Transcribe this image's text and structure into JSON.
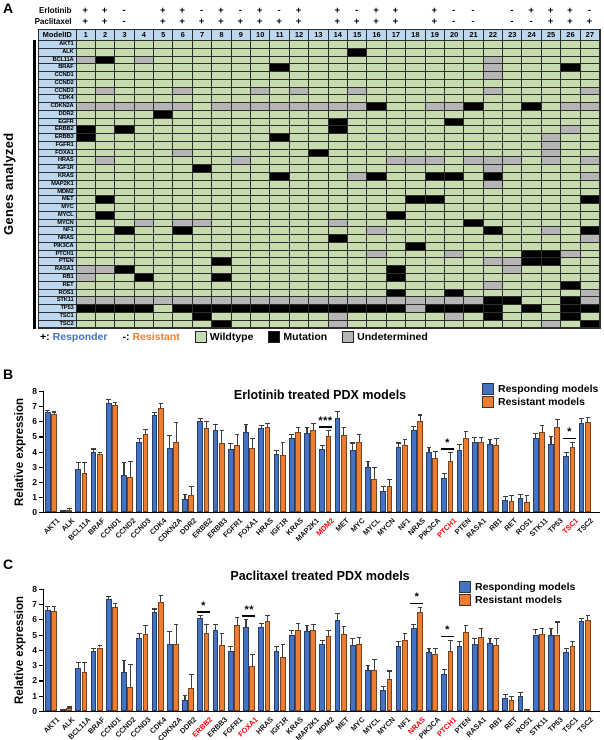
{
  "panelA": {
    "label": "A",
    "side_label": "Genes analyzed",
    "row_labels": {
      "erlotinib": "Erlotinib",
      "paclitaxel": "Paclitaxel",
      "model_id": "ModelID"
    },
    "models": [
      "1",
      "2",
      "3",
      "4",
      "5",
      "6",
      "7",
      "8",
      "9",
      "10",
      "11",
      "12",
      "13",
      "14",
      "15",
      "16",
      "17",
      "18",
      "19",
      "20",
      "21",
      "22",
      "23",
      "24",
      "25",
      "26",
      "27"
    ],
    "erlotinib_status": [
      "+",
      "+",
      "-",
      "",
      "+",
      "+",
      "-",
      "+",
      "-",
      "+",
      "-",
      "+",
      "",
      "+",
      "-",
      "+",
      "+",
      "",
      "+",
      "-",
      "-",
      "",
      "-",
      "+",
      "+",
      "+",
      "-"
    ],
    "paclitaxel_status": [
      "+",
      "+",
      "-",
      "",
      "+",
      "+",
      "+",
      "+",
      "+",
      "+",
      "+",
      "+",
      "",
      "+",
      "+",
      "+",
      "+",
      "",
      "+",
      "-",
      "-",
      "",
      "-",
      "-",
      "+",
      "+",
      "+"
    ],
    "genes": [
      "AKT1",
      "ALK",
      "BCL11A",
      "BRAF",
      "CCND1",
      "CCND2",
      "CCND3",
      "CDK4",
      "CDKN2A",
      "DDR2",
      "EGFR",
      "ERBB2",
      "ERBB3",
      "FGFR1",
      "FOXA1",
      "HRAS",
      "IGF1R",
      "KRAS",
      "MAP2K1",
      "MDM2",
      "MET",
      "MYC",
      "MYCL",
      "MYCN",
      "NF1",
      "NRAS",
      "PIK3CA",
      "PTCH1",
      "PTEN",
      "RASA1",
      "RB1",
      "RET",
      "ROS1",
      "STK11",
      "TP53",
      "TSC1",
      "TSC2"
    ],
    "matrix_key": {
      "G": "wildtype",
      "B": "mutation",
      "U": "undetermined"
    },
    "matrix": [
      "GGGGGGGGGGGGGGGGGGGGGGGGGGG",
      "GGGGGGGGGGGGGGBGGGGGGGGGGGG",
      "UBGUGGGGGGGGGGGGGGGGGUGGGGG",
      "GGGGGGGGGGBGGGGGGGGGGUGGGBG",
      "GGGGGGGGGGGGGGGGGGGGGUGGGGG",
      "GGGGGGGGGGGGGGGGGGGGGGGGGGG",
      "GUGGGUGGGUGUGGUGGGGGGUGGGGU",
      "GGGGGGGGGGGGGGGGGGGGGGGGGGG",
      "UUUUUUGUUUUUUUUBGGUUBGGBGUU",
      "GGGGBGGGGGGGGGGGGGGGGGGGGGG",
      "GGGGGGGGGGGGGBGGGGGBGGGGGGG",
      "BGBGGGGGGGGGGBGGGGGGGGGGGUG",
      "BGGGGGGGGGBGGGGGGGGGGGGGUGG",
      "GGGGGGGGGGGGGGGGGGGGGGGGUGG",
      "GGGGGUGGGGGGBGGGGGGGGGGGUGG",
      "GUGGGGGGUGGGGGGGUUUGUUUGUGU",
      "GGGGGGBGGGGGGGGGGGGGGUGGGGG",
      "GGGGGGGGGGBGGGUBGGBBGBGGGGU",
      "GGGGGGGGGGGGGGGGGGGGGUGGGGG",
      "GGGGGGGGGGGGGGGGGGGGGGGGGGG",
      "GBGGGGGGGGGGGGGGGBBGGGGGGGB",
      "GGGGGGGGGGGGGGGGGGGGGGGGGGG",
      "GBGGGGGGGGGGGGGGBGGGGGGGGGG",
      "GGGUGUUGGGGGGUGGGGGGBGGGGGG",
      "GGBGGBGGGGGGGGGUGGGGGBGGUGB",
      "GGGGGGGGGGGGGBGGGGGGGGGGGGU",
      "GGGGGGGGGGGGGGGGGBGGGGGGGGG",
      "GGGGGGGGGGGGGGGUGGGUGGGBBUG",
      "GGGGGGGBGGGGGGGGGGGGGUUBBGG",
      "UUBGGGGGGGGGGGGGBGGGGGUGGGG",
      "UGGBGGGBGGGGGGGGBGGGGGGGGGG",
      "GGGGGGGGGGGGGGGGGGGGGUGGGBG",
      "GGGGGGGGGGGGGGGGBGGBGGGGGGU",
      "UUUUUUUUUUUUUUUUUUUUUBBGGBU",
      "BBBBGBBBBBBBBBBBBUBBBBGBGBB",
      "GGGGGGBGGGGGGUGGGGGUGBGGGBG",
      "GGGGGGGBGGGGGUGGGGGGGGGGUGB"
    ],
    "legend": {
      "responder_symbol": "+:",
      "responder": "Responder",
      "resistant_symbol": "-:",
      "resistant": "Resistant",
      "wildtype": "Wildtype",
      "mutation": "Mutation",
      "undetermined": "Undetermined"
    },
    "colors": {
      "wildtype": "#c7dcae",
      "mutation": "#000000",
      "undetermined": "#b5b5b5",
      "header_bg": "#bdd7ee",
      "responder_text": "#4472c4",
      "resistant_text": "#ed7d31",
      "grid_border": "#2d2d2d"
    }
  },
  "chart_data": [
    {
      "panel": "B",
      "type": "bar",
      "title": "Erlotinib treated PDX models",
      "ylabel": "Relative expression",
      "ylim": [
        0,
        8
      ],
      "yticks": [
        0,
        1,
        2,
        3,
        4,
        5,
        6,
        7,
        8
      ],
      "legend_position": "top-right",
      "categories": [
        "AKT1",
        "ALK",
        "BCL11A",
        "BRAF",
        "CCND1",
        "CCND2",
        "CCND3",
        "CDK4",
        "CDKN2A",
        "DDR2",
        "ERBB2",
        "ERBB3",
        "FGFR1",
        "FOXA1",
        "HRAS",
        "IGF1R",
        "KRAS",
        "MAP2K1",
        "MDM2",
        "MET",
        "MYC",
        "MYCL",
        "MYCN",
        "NF1",
        "NRAS",
        "PIK3CA",
        "PTCH1",
        "PTEN",
        "RASA1",
        "RB1",
        "RET",
        "ROS1",
        "STK11",
        "TP53",
        "TSC1",
        "TSC2"
      ],
      "red_categories": [
        "MDM2",
        "PTCH1",
        "TSC1"
      ],
      "significance": [
        {
          "category": "MDM2",
          "marker": "***"
        },
        {
          "category": "PTCH1",
          "marker": "*"
        },
        {
          "category": "TSC1",
          "marker": "*"
        }
      ],
      "series": [
        {
          "name": "Responding models",
          "color": "#4472c4",
          "values": [
            6.6,
            0.1,
            2.85,
            4.0,
            7.2,
            2.45,
            4.65,
            6.4,
            4.2,
            0.85,
            6.05,
            5.45,
            4.15,
            5.3,
            5.55,
            3.85,
            4.9,
            5.2,
            4.15,
            6.2,
            4.1,
            3.0,
            1.4,
            4.3,
            5.4,
            4.0,
            2.25,
            4.1,
            4.6,
            4.5,
            0.8,
            0.95,
            4.9,
            4.5,
            3.7,
            5.9
          ],
          "errors": [
            0.15,
            0.05,
            0.45,
            0.2,
            0.25,
            0.85,
            0.25,
            0.2,
            0.9,
            0.35,
            0.2,
            0.35,
            0.4,
            0.5,
            0.2,
            0.25,
            0.25,
            0.4,
            0.3,
            0.5,
            0.5,
            0.4,
            0.35,
            0.3,
            0.3,
            0.3,
            0.35,
            0.4,
            0.35,
            0.35,
            0.25,
            0.25,
            0.35,
            0.5,
            0.3,
            0.3
          ]
        },
        {
          "name": "Resistant models",
          "color": "#ed7d31",
          "values": [
            6.5,
            0.15,
            2.6,
            3.85,
            7.1,
            2.3,
            5.15,
            6.9,
            4.65,
            1.15,
            5.55,
            4.55,
            4.45,
            4.25,
            5.65,
            3.75,
            5.3,
            5.45,
            5.05,
            5.1,
            4.6,
            2.2,
            1.7,
            4.4,
            6.05,
            3.6,
            3.4,
            4.9,
            4.6,
            4.4,
            0.75,
            0.65,
            5.3,
            5.6,
            4.3,
            5.95
          ],
          "errors": [
            0.15,
            0.1,
            0.7,
            0.15,
            0.2,
            1.05,
            0.35,
            0.3,
            1.3,
            0.55,
            0.45,
            0.85,
            0.7,
            0.65,
            0.25,
            0.9,
            0.35,
            0.45,
            0.35,
            0.5,
            0.55,
            0.75,
            0.5,
            0.45,
            0.4,
            0.45,
            0.55,
            0.45,
            0.35,
            0.5,
            0.4,
            0.45,
            0.45,
            0.55,
            0.35,
            0.35
          ]
        }
      ]
    },
    {
      "panel": "C",
      "type": "bar",
      "title": "Paclitaxel treated PDX models",
      "ylabel": "Relative expression",
      "ylim": [
        0,
        8
      ],
      "yticks": [
        0,
        1,
        2,
        3,
        4,
        5,
        6,
        7,
        8
      ],
      "legend_position": "top-right",
      "categories": [
        "AKT1",
        "ALK",
        "BCL11A",
        "BRAF",
        "CCND1",
        "CCND2",
        "CCND3",
        "CDK4",
        "CDKN2A",
        "DDR2",
        "ERBB2",
        "ERBB3",
        "FGFR1",
        "FOXA1",
        "HRAS",
        "IGF1R",
        "KRAS",
        "MAP2K1",
        "MDM2",
        "MET",
        "MYC",
        "MYCL",
        "MYCN",
        "NF1",
        "NRAS",
        "PIK3CA",
        "PTCH1",
        "PTEN",
        "RASA1",
        "RB1",
        "RET",
        "ROS1",
        "STK11",
        "TP53",
        "TSC1",
        "TSC2"
      ],
      "red_categories": [
        "ERBB2",
        "FOXA1",
        "NRAS",
        "PTCH1"
      ],
      "significance": [
        {
          "category": "ERBB2",
          "marker": "*"
        },
        {
          "category": "FOXA1",
          "marker": "**"
        },
        {
          "category": "NRAS",
          "marker": "*"
        },
        {
          "category": "PTCH1",
          "marker": "*"
        }
      ],
      "series": [
        {
          "name": "Responding models",
          "color": "#4472c4",
          "values": [
            6.6,
            0.1,
            2.8,
            3.95,
            7.3,
            2.55,
            4.8,
            6.5,
            4.4,
            0.75,
            6.05,
            5.3,
            3.9,
            5.5,
            5.5,
            3.95,
            5.0,
            5.2,
            4.35,
            5.95,
            4.3,
            2.65,
            1.35,
            4.25,
            5.4,
            3.85,
            2.45,
            4.25,
            4.4,
            4.45,
            0.85,
            1.0,
            5.0,
            4.95,
            3.85,
            5.85
          ],
          "errors": [
            0.25,
            0.05,
            0.4,
            0.15,
            0.2,
            0.8,
            0.3,
            0.2,
            0.85,
            0.3,
            0.2,
            0.4,
            0.35,
            0.5,
            0.25,
            0.3,
            0.3,
            0.45,
            0.3,
            0.45,
            0.45,
            0.35,
            0.3,
            0.3,
            0.3,
            0.3,
            0.3,
            0.35,
            0.35,
            0.35,
            0.25,
            0.25,
            0.35,
            0.45,
            0.25,
            0.25
          ]
        },
        {
          "name": "Resistant models",
          "color": "#ed7d31",
          "values": [
            6.55,
            0.2,
            2.55,
            4.15,
            6.8,
            1.6,
            5.05,
            7.1,
            4.4,
            1.5,
            5.1,
            4.3,
            5.6,
            2.95,
            5.9,
            3.5,
            5.3,
            5.3,
            4.9,
            5.05,
            4.35,
            2.7,
            2.1,
            4.65,
            6.45,
            3.75,
            3.9,
            5.15,
            4.85,
            4.3,
            0.7,
            0.1,
            5.05,
            5.0,
            4.25,
            5.95
          ],
          "errors": [
            0.3,
            0.1,
            0.65,
            0.15,
            0.25,
            1.5,
            0.55,
            0.5,
            1.3,
            0.9,
            0.6,
            0.8,
            0.55,
            0.75,
            0.35,
            0.9,
            0.45,
            0.4,
            0.4,
            0.5,
            0.5,
            0.7,
            0.55,
            0.45,
            0.35,
            0.4,
            0.75,
            0.5,
            0.6,
            0.45,
            0.3,
            0.05,
            0.4,
            0.85,
            0.3,
            0.3
          ]
        }
      ]
    }
  ]
}
